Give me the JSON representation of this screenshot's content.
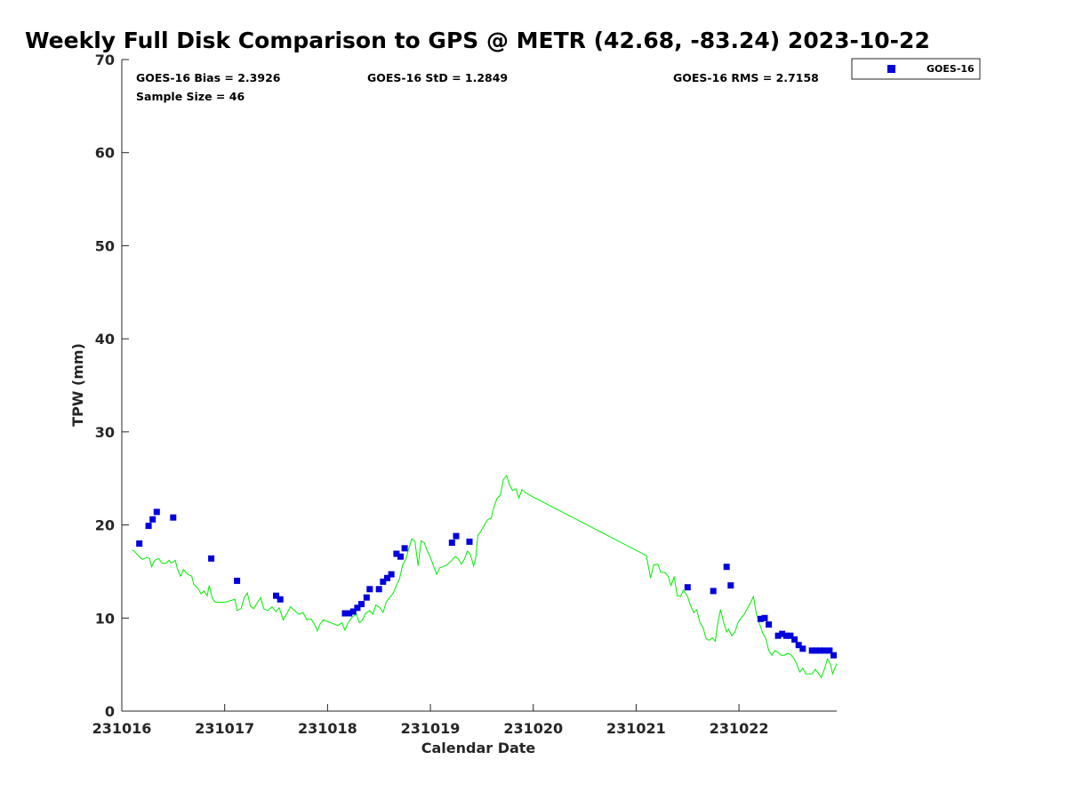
{
  "chart_data": {
    "type": "scatter",
    "title": "Weekly Full Disk Comparison to GPS @ METR (42.68, -83.24) 2023-10-22",
    "xlabel": "Calendar Date",
    "ylabel": "TPW (mm)",
    "xlim": [
      0,
      6.95
    ],
    "ylim": [
      0,
      70
    ],
    "x_ticks": [
      0,
      1,
      2,
      3,
      4,
      5,
      6
    ],
    "x_tick_labels": [
      "231016",
      "231017",
      "231018",
      "231019",
      "231020",
      "231021",
      "231022"
    ],
    "y_ticks": [
      0,
      10,
      20,
      30,
      40,
      50,
      60,
      70
    ],
    "y_tick_labels": [
      "0",
      "10",
      "20",
      "30",
      "40",
      "50",
      "60",
      "70"
    ],
    "grid": false,
    "legend_position": "top-right",
    "stats": {
      "bias": "GOES-16 Bias = 2.3926",
      "std": "GOES-16 StD = 1.2849",
      "rms": "GOES-16 RMS = 2.7158",
      "sample": "Sample Size = 46"
    },
    "series": [
      {
        "name": "GOES-16",
        "kind": "scatter",
        "color": "#0000dd",
        "marker": "square",
        "points": [
          [
            0.17,
            18.0
          ],
          [
            0.26,
            19.9
          ],
          [
            0.3,
            20.6
          ],
          [
            0.34,
            21.4
          ],
          [
            0.5,
            20.8
          ],
          [
            0.87,
            16.4
          ],
          [
            1.12,
            14.0
          ],
          [
            1.5,
            12.4
          ],
          [
            1.54,
            12.0
          ],
          [
            2.17,
            10.5
          ],
          [
            2.21,
            10.5
          ],
          [
            2.25,
            10.7
          ],
          [
            2.29,
            11.1
          ],
          [
            2.33,
            11.5
          ],
          [
            2.38,
            12.2
          ],
          [
            2.41,
            13.1
          ],
          [
            2.5,
            13.1
          ],
          [
            2.54,
            13.9
          ],
          [
            2.58,
            14.3
          ],
          [
            2.62,
            14.7
          ],
          [
            2.67,
            16.9
          ],
          [
            2.71,
            16.6
          ],
          [
            2.75,
            17.5
          ],
          [
            3.21,
            18.1
          ],
          [
            3.25,
            18.8
          ],
          [
            3.38,
            18.2
          ],
          [
            5.5,
            13.3
          ],
          [
            5.75,
            12.9
          ],
          [
            5.88,
            15.5
          ],
          [
            5.92,
            13.5
          ],
          [
            6.21,
            9.9
          ],
          [
            6.25,
            10.0
          ],
          [
            6.29,
            9.3
          ],
          [
            6.38,
            8.1
          ],
          [
            6.42,
            8.3
          ],
          [
            6.46,
            8.1
          ],
          [
            6.5,
            8.1
          ],
          [
            6.54,
            7.7
          ],
          [
            6.58,
            7.1
          ],
          [
            6.62,
            6.7
          ],
          [
            6.71,
            6.5
          ],
          [
            6.75,
            6.5
          ],
          [
            6.79,
            6.5
          ],
          [
            6.83,
            6.5
          ],
          [
            6.88,
            6.5
          ],
          [
            6.92,
            6.0
          ]
        ]
      },
      {
        "name": "",
        "kind": "line",
        "color": "#00ee00",
        "points": [
          [
            0.1,
            17.3
          ],
          [
            0.12,
            17.2
          ],
          [
            0.16,
            16.7
          ],
          [
            0.2,
            16.3
          ],
          [
            0.24,
            16.5
          ],
          [
            0.27,
            16.4
          ],
          [
            0.29,
            15.5
          ],
          [
            0.32,
            16.2
          ],
          [
            0.36,
            16.4
          ],
          [
            0.39,
            15.9
          ],
          [
            0.43,
            15.9
          ],
          [
            0.46,
            16.2
          ],
          [
            0.48,
            15.9
          ],
          [
            0.52,
            16.2
          ],
          [
            0.54,
            15.3
          ],
          [
            0.57,
            14.5
          ],
          [
            0.6,
            15.2
          ],
          [
            0.64,
            14.7
          ],
          [
            0.68,
            14.5
          ],
          [
            0.7,
            13.6
          ],
          [
            0.74,
            13.2
          ],
          [
            0.77,
            12.6
          ],
          [
            0.8,
            12.9
          ],
          [
            0.83,
            12.4
          ],
          [
            0.85,
            13.5
          ],
          [
            0.88,
            12.1
          ],
          [
            0.91,
            11.7
          ],
          [
            1.0,
            11.7
          ],
          [
            1.1,
            12.0
          ],
          [
            1.12,
            10.8
          ],
          [
            1.16,
            11.0
          ],
          [
            1.19,
            12.2
          ],
          [
            1.22,
            12.7
          ],
          [
            1.25,
            11.3
          ],
          [
            1.28,
            11.0
          ],
          [
            1.32,
            11.7
          ],
          [
            1.35,
            12.2
          ],
          [
            1.38,
            11.0
          ],
          [
            1.42,
            10.8
          ],
          [
            1.46,
            11.2
          ],
          [
            1.5,
            10.7
          ],
          [
            1.53,
            11.1
          ],
          [
            1.57,
            9.8
          ],
          [
            1.6,
            10.4
          ],
          [
            1.64,
            11.2
          ],
          [
            1.68,
            10.8
          ],
          [
            1.72,
            10.4
          ],
          [
            1.76,
            10.6
          ],
          [
            1.8,
            9.8
          ],
          [
            1.84,
            9.9
          ],
          [
            1.88,
            9.2
          ],
          [
            1.9,
            8.6
          ],
          [
            1.93,
            9.4
          ],
          [
            1.96,
            9.8
          ],
          [
            2.1,
            9.2
          ],
          [
            2.14,
            9.5
          ],
          [
            2.17,
            8.7
          ],
          [
            2.2,
            9.5
          ],
          [
            2.24,
            10.1
          ],
          [
            2.28,
            10.4
          ],
          [
            2.31,
            9.5
          ],
          [
            2.34,
            9.8
          ],
          [
            2.37,
            10.5
          ],
          [
            2.41,
            10.8
          ],
          [
            2.44,
            10.4
          ],
          [
            2.47,
            11.4
          ],
          [
            2.51,
            11.1
          ],
          [
            2.54,
            10.6
          ],
          [
            2.57,
            11.7
          ],
          [
            2.61,
            12.3
          ],
          [
            2.64,
            12.7
          ],
          [
            2.67,
            13.5
          ],
          [
            2.7,
            14.2
          ],
          [
            2.73,
            15.7
          ],
          [
            2.76,
            16.3
          ],
          [
            2.79,
            17.5
          ],
          [
            2.82,
            18.5
          ],
          [
            2.85,
            18.2
          ],
          [
            2.88,
            15.6
          ],
          [
            2.91,
            18.3
          ],
          [
            2.94,
            18.1
          ],
          [
            2.97,
            17.2
          ],
          [
            3.0,
            16.5
          ],
          [
            3.03,
            15.6
          ],
          [
            3.06,
            14.7
          ],
          [
            3.09,
            15.4
          ],
          [
            3.12,
            15.5
          ],
          [
            3.16,
            15.7
          ],
          [
            3.2,
            16.1
          ],
          [
            3.24,
            16.6
          ],
          [
            3.27,
            16.4
          ],
          [
            3.3,
            15.8
          ],
          [
            3.33,
            16.3
          ],
          [
            3.36,
            17.2
          ],
          [
            3.39,
            16.8
          ],
          [
            3.42,
            15.6
          ],
          [
            3.44,
            16.4
          ],
          [
            3.46,
            18.8
          ],
          [
            3.5,
            19.5
          ],
          [
            3.53,
            20.1
          ],
          [
            3.56,
            20.6
          ],
          [
            3.59,
            20.7
          ],
          [
            3.62,
            22.0
          ],
          [
            3.65,
            22.9
          ],
          [
            3.68,
            23.2
          ],
          [
            3.71,
            24.9
          ],
          [
            3.74,
            25.3
          ],
          [
            3.77,
            24.3
          ],
          [
            3.8,
            23.7
          ],
          [
            3.83,
            23.9
          ],
          [
            3.86,
            22.9
          ],
          [
            3.89,
            23.8
          ],
          [
            3.92,
            23.5
          ],
          [
            4.0,
            23.0
          ],
          [
            5.1,
            16.7
          ],
          [
            5.14,
            14.3
          ],
          [
            5.17,
            15.7
          ],
          [
            5.21,
            15.8
          ],
          [
            5.24,
            14.9
          ],
          [
            5.28,
            14.9
          ],
          [
            5.31,
            14.5
          ],
          [
            5.34,
            13.5
          ],
          [
            5.37,
            14.4
          ],
          [
            5.4,
            12.4
          ],
          [
            5.43,
            12.3
          ],
          [
            5.46,
            13.0
          ],
          [
            5.5,
            12.3
          ],
          [
            5.53,
            11.3
          ],
          [
            5.56,
            10.6
          ],
          [
            5.59,
            10.9
          ],
          [
            5.62,
            9.5
          ],
          [
            5.65,
            9.0
          ],
          [
            5.68,
            7.8
          ],
          [
            5.71,
            7.6
          ],
          [
            5.74,
            7.9
          ],
          [
            5.77,
            7.5
          ],
          [
            5.79,
            9.2
          ],
          [
            5.82,
            10.9
          ],
          [
            5.85,
            9.6
          ],
          [
            5.88,
            8.5
          ],
          [
            5.9,
            8.8
          ],
          [
            5.93,
            8.1
          ],
          [
            5.96,
            8.5
          ],
          [
            5.99,
            9.5
          ],
          [
            6.02,
            10.0
          ],
          [
            6.05,
            10.4
          ],
          [
            6.08,
            11.0
          ],
          [
            6.11,
            11.6
          ],
          [
            6.14,
            12.3
          ],
          [
            6.17,
            10.4
          ],
          [
            6.2,
            9.4
          ],
          [
            6.23,
            8.4
          ],
          [
            6.26,
            7.8
          ],
          [
            6.29,
            6.5
          ],
          [
            6.32,
            6.0
          ],
          [
            6.35,
            6.5
          ],
          [
            6.38,
            6.3
          ],
          [
            6.41,
            6.0
          ],
          [
            6.44,
            6.0
          ],
          [
            6.47,
            6.2
          ],
          [
            6.5,
            6.1
          ],
          [
            6.53,
            5.7
          ],
          [
            6.56,
            5.1
          ],
          [
            6.59,
            4.2
          ],
          [
            6.62,
            4.6
          ],
          [
            6.65,
            4.0
          ],
          [
            6.68,
            4.0
          ],
          [
            6.71,
            4.0
          ],
          [
            6.74,
            4.5
          ],
          [
            6.77,
            4.1
          ],
          [
            6.8,
            3.6
          ],
          [
            6.83,
            4.5
          ],
          [
            6.86,
            5.6
          ],
          [
            6.89,
            5.0
          ],
          [
            6.91,
            4.0
          ],
          [
            6.95,
            5.1
          ]
        ]
      }
    ]
  }
}
